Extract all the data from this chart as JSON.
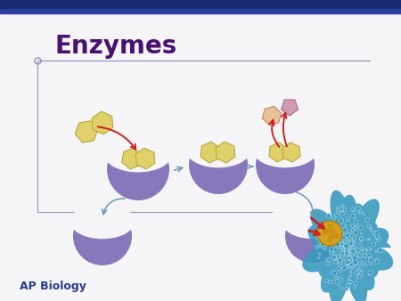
{
  "title": "Enzymes",
  "subtitle": "AP Biology",
  "bg_color": "#f5f5f8",
  "top_bar_color": "#1a2a6e",
  "top_bar2_color": "#2d3f9e",
  "title_color": "#4a1270",
  "subtitle_color": "#2a3a8c",
  "enzyme_color": "#8878bb",
  "enzyme_shadow": "#6a60a0",
  "substrate_color": "#dfd06a",
  "substrate_edge": "#b8a840",
  "product1_color": "#e8c09a",
  "product1_edge": "#c09060",
  "product2_color": "#d09ab0",
  "product2_edge": "#a87090",
  "arrow_blue": "#6898b8",
  "arrow_red": "#cc2222",
  "protein_color": "#3a9abf",
  "gold_color": "#d4a020",
  "line_color": "#9090b8",
  "circle_color": "#9090b8"
}
